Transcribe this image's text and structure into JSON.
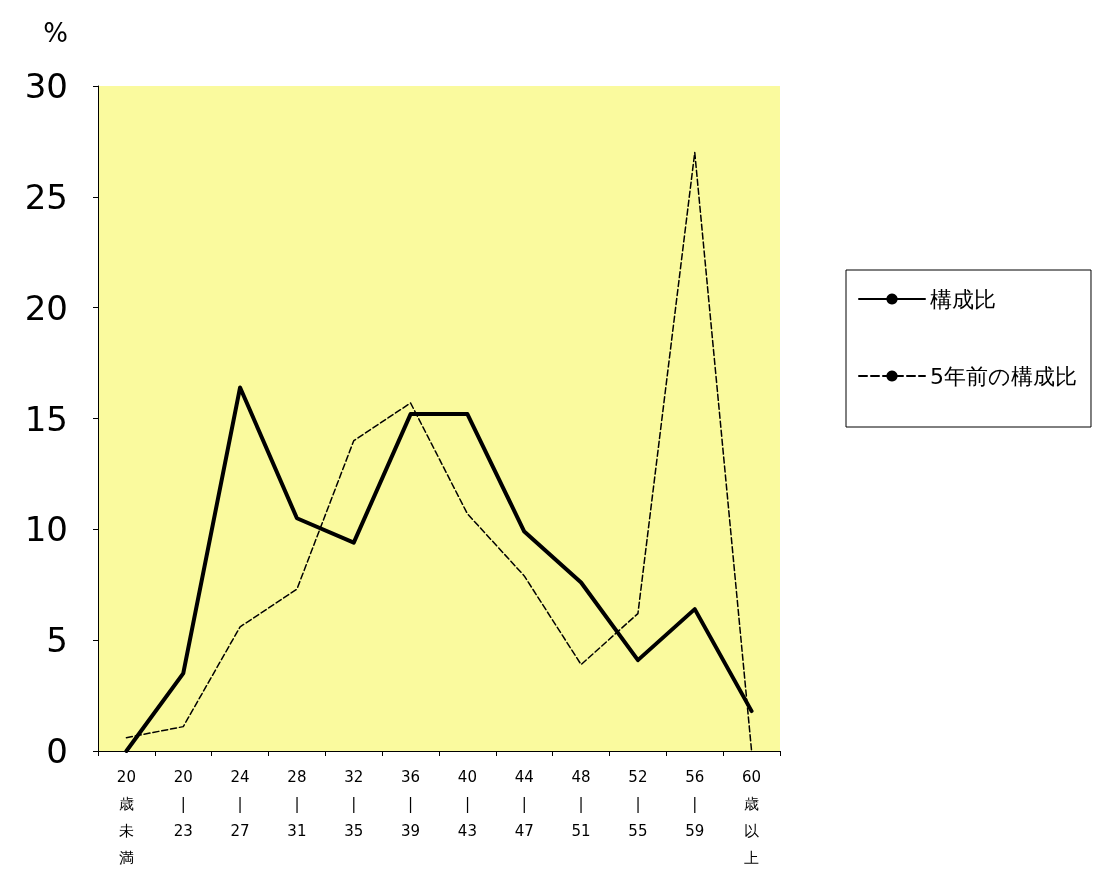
{
  "chart_data": {
    "type": "line",
    "ylabel": "%",
    "categories": [
      "20歳未満",
      "20\n|\n23",
      "24\n|\n27",
      "28\n|\n31",
      "32\n|\n35",
      "36\n|\n39",
      "40\n|\n43",
      "44\n|\n47",
      "48\n|\n51",
      "52\n|\n55",
      "56\n|\n59",
      "60歳以上"
    ],
    "series": [
      {
        "name": "構成比",
        "color": "#000000",
        "line_style": "solid",
        "values": [
          0,
          3.5,
          16.4,
          10.5,
          9.4,
          15.2,
          15.2,
          9.9,
          7.6,
          4.1,
          6.4,
          1.8
        ]
      },
      {
        "name": "5年前の構成比",
        "color": "#000000",
        "line_style": "dashed",
        "values": [
          0.6,
          1.1,
          5.6,
          7.3,
          14.0,
          15.7,
          10.7,
          7.9,
          3.9,
          6.2,
          27.0,
          0
        ]
      }
    ],
    "ylim": [
      0,
      30
    ],
    "yticks": [
      0,
      5,
      10,
      15,
      20,
      25,
      30
    ],
    "grid": false,
    "legend": "right",
    "marker": "none"
  }
}
